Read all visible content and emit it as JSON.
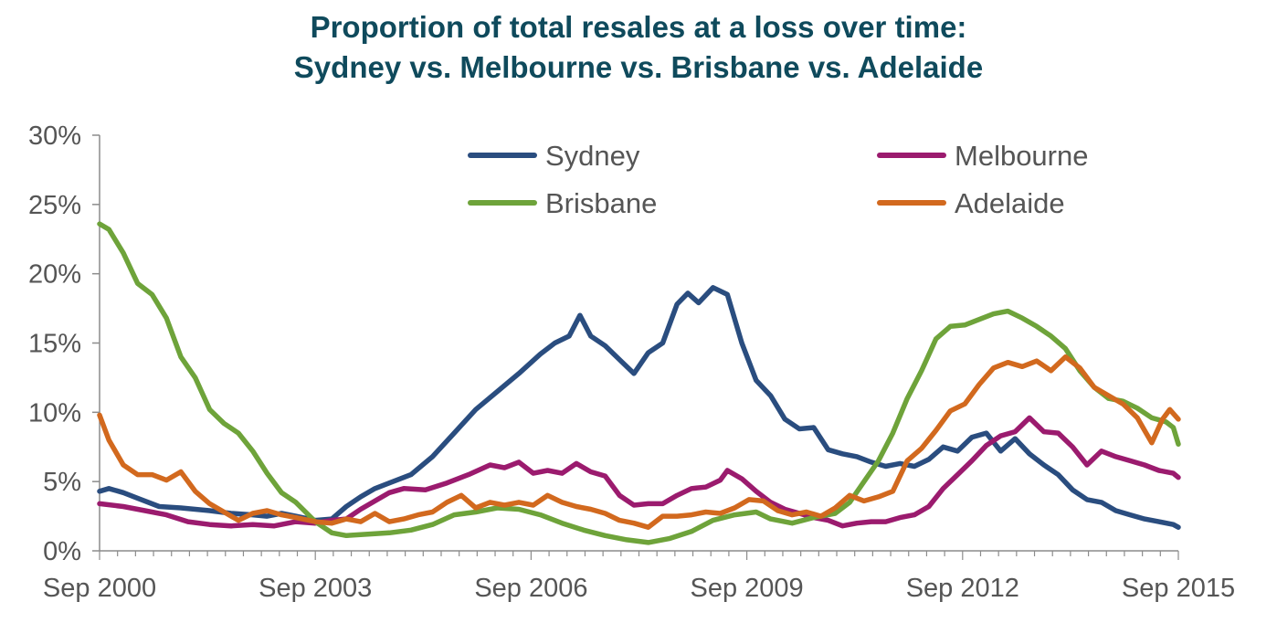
{
  "title_line1": "Proportion of total resales at a loss over time:",
  "title_line2": "Sydney vs. Melbourne vs. Brisbane vs. Adelaide",
  "chart_data": {
    "type": "line",
    "x_ticks": [
      "Sep 2000",
      "Sep 2003",
      "Sep 2006",
      "Sep 2009",
      "Sep 2012",
      "Sep 2015"
    ],
    "y_ticks": [
      "0%",
      "5%",
      "10%",
      "15%",
      "20%",
      "25%",
      "30%"
    ],
    "ylim": [
      0,
      30
    ],
    "xlim": [
      2000.67,
      2015.67
    ],
    "legend_position": "top-center",
    "grid": false,
    "series": [
      {
        "name": "Sydney",
        "color": "#2a4d7f",
        "points": [
          [
            2000.67,
            4.3
          ],
          [
            2000.8,
            4.5
          ],
          [
            2001.0,
            4.2
          ],
          [
            2001.2,
            3.8
          ],
          [
            2001.5,
            3.2
          ],
          [
            2001.8,
            3.1
          ],
          [
            2002.2,
            2.9
          ],
          [
            2002.5,
            2.7
          ],
          [
            2002.8,
            2.6
          ],
          [
            2003.0,
            2.5
          ],
          [
            2003.2,
            2.7
          ],
          [
            2003.4,
            2.5
          ],
          [
            2003.67,
            2.2
          ],
          [
            2003.9,
            2.3
          ],
          [
            2004.1,
            3.2
          ],
          [
            2004.3,
            3.9
          ],
          [
            2004.5,
            4.5
          ],
          [
            2004.7,
            4.9
          ],
          [
            2005.0,
            5.5
          ],
          [
            2005.3,
            6.8
          ],
          [
            2005.6,
            8.5
          ],
          [
            2005.9,
            10.2
          ],
          [
            2006.2,
            11.5
          ],
          [
            2006.5,
            12.8
          ],
          [
            2006.8,
            14.2
          ],
          [
            2007.0,
            15.0
          ],
          [
            2007.2,
            15.5
          ],
          [
            2007.35,
            17.0
          ],
          [
            2007.5,
            15.5
          ],
          [
            2007.7,
            14.8
          ],
          [
            2007.9,
            13.8
          ],
          [
            2008.1,
            12.8
          ],
          [
            2008.3,
            14.3
          ],
          [
            2008.5,
            15.0
          ],
          [
            2008.7,
            17.8
          ],
          [
            2008.85,
            18.6
          ],
          [
            2009.0,
            17.9
          ],
          [
            2009.2,
            19.0
          ],
          [
            2009.4,
            18.5
          ],
          [
            2009.6,
            15.0
          ],
          [
            2009.8,
            12.3
          ],
          [
            2010.0,
            11.2
          ],
          [
            2010.2,
            9.5
          ],
          [
            2010.4,
            8.8
          ],
          [
            2010.6,
            8.9
          ],
          [
            2010.8,
            7.3
          ],
          [
            2011.0,
            7.0
          ],
          [
            2011.2,
            6.8
          ],
          [
            2011.4,
            6.4
          ],
          [
            2011.6,
            6.1
          ],
          [
            2011.8,
            6.3
          ],
          [
            2012.0,
            6.1
          ],
          [
            2012.2,
            6.6
          ],
          [
            2012.4,
            7.5
          ],
          [
            2012.6,
            7.2
          ],
          [
            2012.8,
            8.2
          ],
          [
            2013.0,
            8.5
          ],
          [
            2013.2,
            7.2
          ],
          [
            2013.4,
            8.1
          ],
          [
            2013.6,
            7.0
          ],
          [
            2013.8,
            6.2
          ],
          [
            2014.0,
            5.5
          ],
          [
            2014.2,
            4.4
          ],
          [
            2014.4,
            3.7
          ],
          [
            2014.6,
            3.5
          ],
          [
            2014.8,
            2.9
          ],
          [
            2015.0,
            2.6
          ],
          [
            2015.2,
            2.3
          ],
          [
            2015.4,
            2.1
          ],
          [
            2015.6,
            1.9
          ],
          [
            2015.67,
            1.7
          ]
        ]
      },
      {
        "name": "Melbourne",
        "color": "#9b1b6e",
        "points": [
          [
            2000.67,
            3.4
          ],
          [
            2001.0,
            3.2
          ],
          [
            2001.3,
            2.9
          ],
          [
            2001.6,
            2.6
          ],
          [
            2001.9,
            2.1
          ],
          [
            2002.2,
            1.9
          ],
          [
            2002.5,
            1.8
          ],
          [
            2002.8,
            1.9
          ],
          [
            2003.1,
            1.8
          ],
          [
            2003.4,
            2.1
          ],
          [
            2003.67,
            2.0
          ],
          [
            2003.9,
            2.2
          ],
          [
            2004.1,
            2.3
          ],
          [
            2004.3,
            3.0
          ],
          [
            2004.5,
            3.6
          ],
          [
            2004.7,
            4.2
          ],
          [
            2004.9,
            4.5
          ],
          [
            2005.2,
            4.4
          ],
          [
            2005.5,
            4.9
          ],
          [
            2005.8,
            5.5
          ],
          [
            2006.1,
            6.2
          ],
          [
            2006.3,
            6.0
          ],
          [
            2006.5,
            6.4
          ],
          [
            2006.7,
            5.6
          ],
          [
            2006.9,
            5.8
          ],
          [
            2007.1,
            5.6
          ],
          [
            2007.3,
            6.3
          ],
          [
            2007.5,
            5.7
          ],
          [
            2007.7,
            5.4
          ],
          [
            2007.9,
            4.0
          ],
          [
            2008.1,
            3.3
          ],
          [
            2008.3,
            3.4
          ],
          [
            2008.5,
            3.4
          ],
          [
            2008.7,
            4.0
          ],
          [
            2008.9,
            4.5
          ],
          [
            2009.1,
            4.6
          ],
          [
            2009.3,
            5.1
          ],
          [
            2009.4,
            5.8
          ],
          [
            2009.6,
            5.2
          ],
          [
            2009.8,
            4.3
          ],
          [
            2010.0,
            3.5
          ],
          [
            2010.2,
            3.0
          ],
          [
            2010.4,
            2.7
          ],
          [
            2010.6,
            2.4
          ],
          [
            2010.8,
            2.2
          ],
          [
            2011.0,
            1.8
          ],
          [
            2011.2,
            2.0
          ],
          [
            2011.4,
            2.1
          ],
          [
            2011.6,
            2.1
          ],
          [
            2011.8,
            2.4
          ],
          [
            2012.0,
            2.6
          ],
          [
            2012.2,
            3.2
          ],
          [
            2012.4,
            4.5
          ],
          [
            2012.6,
            5.5
          ],
          [
            2012.8,
            6.5
          ],
          [
            2013.0,
            7.6
          ],
          [
            2013.2,
            8.3
          ],
          [
            2013.4,
            8.6
          ],
          [
            2013.6,
            9.6
          ],
          [
            2013.8,
            8.6
          ],
          [
            2014.0,
            8.5
          ],
          [
            2014.2,
            7.5
          ],
          [
            2014.4,
            6.2
          ],
          [
            2014.6,
            7.2
          ],
          [
            2014.8,
            6.8
          ],
          [
            2015.0,
            6.5
          ],
          [
            2015.2,
            6.2
          ],
          [
            2015.4,
            5.8
          ],
          [
            2015.6,
            5.6
          ],
          [
            2015.67,
            5.3
          ]
        ]
      },
      {
        "name": "Brisbane",
        "color": "#6ea33a",
        "points": [
          [
            2000.67,
            23.6
          ],
          [
            2000.8,
            23.2
          ],
          [
            2001.0,
            21.5
          ],
          [
            2001.2,
            19.3
          ],
          [
            2001.4,
            18.5
          ],
          [
            2001.6,
            16.8
          ],
          [
            2001.8,
            14.0
          ],
          [
            2002.0,
            12.5
          ],
          [
            2002.2,
            10.2
          ],
          [
            2002.4,
            9.2
          ],
          [
            2002.6,
            8.5
          ],
          [
            2002.8,
            7.2
          ],
          [
            2003.0,
            5.6
          ],
          [
            2003.2,
            4.2
          ],
          [
            2003.4,
            3.5
          ],
          [
            2003.67,
            2.1
          ],
          [
            2003.9,
            1.3
          ],
          [
            2004.1,
            1.1
          ],
          [
            2004.4,
            1.2
          ],
          [
            2004.7,
            1.3
          ],
          [
            2005.0,
            1.5
          ],
          [
            2005.3,
            1.9
          ],
          [
            2005.6,
            2.6
          ],
          [
            2005.9,
            2.8
          ],
          [
            2006.2,
            3.1
          ],
          [
            2006.5,
            3.0
          ],
          [
            2006.8,
            2.6
          ],
          [
            2007.1,
            2.0
          ],
          [
            2007.4,
            1.5
          ],
          [
            2007.7,
            1.1
          ],
          [
            2008.0,
            0.8
          ],
          [
            2008.3,
            0.6
          ],
          [
            2008.6,
            0.9
          ],
          [
            2008.9,
            1.4
          ],
          [
            2009.2,
            2.2
          ],
          [
            2009.5,
            2.6
          ],
          [
            2009.8,
            2.8
          ],
          [
            2010.0,
            2.3
          ],
          [
            2010.3,
            2.0
          ],
          [
            2010.6,
            2.4
          ],
          [
            2010.9,
            2.7
          ],
          [
            2011.1,
            3.5
          ],
          [
            2011.3,
            5.0
          ],
          [
            2011.5,
            6.5
          ],
          [
            2011.7,
            8.5
          ],
          [
            2011.9,
            11.0
          ],
          [
            2012.1,
            13.0
          ],
          [
            2012.3,
            15.3
          ],
          [
            2012.5,
            16.2
          ],
          [
            2012.7,
            16.3
          ],
          [
            2012.9,
            16.7
          ],
          [
            2013.1,
            17.1
          ],
          [
            2013.3,
            17.3
          ],
          [
            2013.5,
            16.8
          ],
          [
            2013.7,
            16.2
          ],
          [
            2013.9,
            15.5
          ],
          [
            2014.1,
            14.6
          ],
          [
            2014.3,
            13.0
          ],
          [
            2014.5,
            11.8
          ],
          [
            2014.7,
            11.0
          ],
          [
            2014.9,
            10.8
          ],
          [
            2015.1,
            10.3
          ],
          [
            2015.3,
            9.6
          ],
          [
            2015.5,
            9.3
          ],
          [
            2015.6,
            8.9
          ],
          [
            2015.67,
            7.7
          ]
        ]
      },
      {
        "name": "Adelaide",
        "color": "#d2691e",
        "points": [
          [
            2000.67,
            9.8
          ],
          [
            2000.8,
            8.0
          ],
          [
            2001.0,
            6.2
          ],
          [
            2001.2,
            5.5
          ],
          [
            2001.4,
            5.5
          ],
          [
            2001.6,
            5.1
          ],
          [
            2001.8,
            5.7
          ],
          [
            2002.0,
            4.3
          ],
          [
            2002.2,
            3.4
          ],
          [
            2002.4,
            2.8
          ],
          [
            2002.6,
            2.2
          ],
          [
            2002.8,
            2.7
          ],
          [
            2003.0,
            2.9
          ],
          [
            2003.2,
            2.6
          ],
          [
            2003.4,
            2.4
          ],
          [
            2003.67,
            2.1
          ],
          [
            2003.9,
            2.0
          ],
          [
            2004.1,
            2.3
          ],
          [
            2004.3,
            2.1
          ],
          [
            2004.5,
            2.7
          ],
          [
            2004.7,
            2.1
          ],
          [
            2004.9,
            2.3
          ],
          [
            2005.1,
            2.6
          ],
          [
            2005.3,
            2.8
          ],
          [
            2005.5,
            3.5
          ],
          [
            2005.7,
            4.0
          ],
          [
            2005.9,
            3.1
          ],
          [
            2006.1,
            3.5
          ],
          [
            2006.3,
            3.3
          ],
          [
            2006.5,
            3.5
          ],
          [
            2006.7,
            3.3
          ],
          [
            2006.9,
            4.0
          ],
          [
            2007.1,
            3.5
          ],
          [
            2007.3,
            3.2
          ],
          [
            2007.5,
            3.0
          ],
          [
            2007.7,
            2.7
          ],
          [
            2007.9,
            2.2
          ],
          [
            2008.1,
            2.0
          ],
          [
            2008.3,
            1.7
          ],
          [
            2008.5,
            2.5
          ],
          [
            2008.7,
            2.5
          ],
          [
            2008.9,
            2.6
          ],
          [
            2009.1,
            2.8
          ],
          [
            2009.3,
            2.7
          ],
          [
            2009.5,
            3.1
          ],
          [
            2009.7,
            3.7
          ],
          [
            2009.9,
            3.6
          ],
          [
            2010.1,
            2.9
          ],
          [
            2010.3,
            2.6
          ],
          [
            2010.5,
            2.8
          ],
          [
            2010.7,
            2.5
          ],
          [
            2010.9,
            3.1
          ],
          [
            2011.1,
            4.0
          ],
          [
            2011.3,
            3.6
          ],
          [
            2011.5,
            3.9
          ],
          [
            2011.7,
            4.3
          ],
          [
            2011.9,
            6.5
          ],
          [
            2012.1,
            7.4
          ],
          [
            2012.3,
            8.7
          ],
          [
            2012.5,
            10.1
          ],
          [
            2012.7,
            10.6
          ],
          [
            2012.9,
            12.0
          ],
          [
            2013.1,
            13.2
          ],
          [
            2013.3,
            13.6
          ],
          [
            2013.5,
            13.3
          ],
          [
            2013.7,
            13.7
          ],
          [
            2013.9,
            13.0
          ],
          [
            2014.1,
            14.0
          ],
          [
            2014.3,
            13.2
          ],
          [
            2014.5,
            11.8
          ],
          [
            2014.7,
            11.2
          ],
          [
            2014.9,
            10.6
          ],
          [
            2015.1,
            9.6
          ],
          [
            2015.2,
            8.7
          ],
          [
            2015.3,
            7.8
          ],
          [
            2015.45,
            9.5
          ],
          [
            2015.55,
            10.2
          ],
          [
            2015.67,
            9.5
          ]
        ]
      }
    ]
  }
}
